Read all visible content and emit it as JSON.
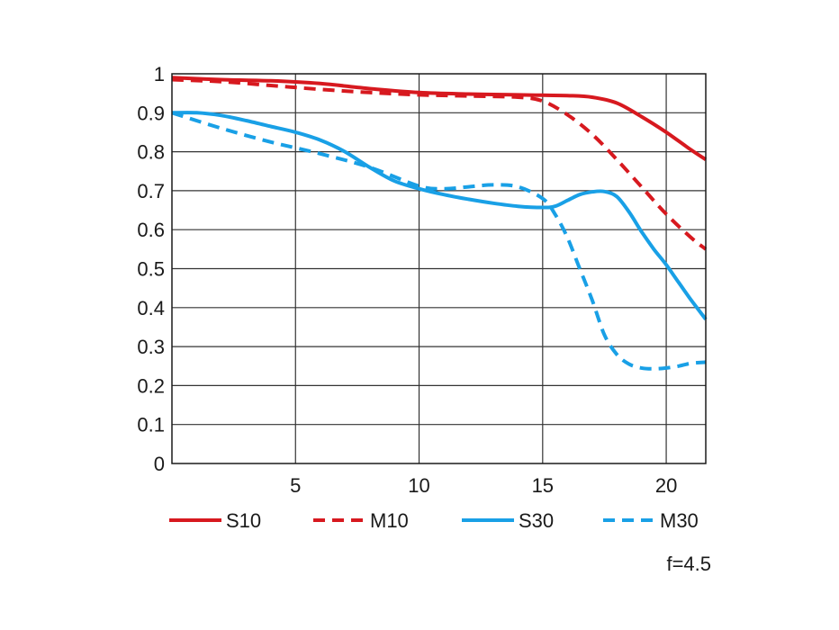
{
  "chart_data": {
    "type": "line",
    "title": "",
    "xlabel": "",
    "ylabel": "",
    "xlim": [
      0,
      21.6
    ],
    "ylim": [
      0,
      1
    ],
    "grid": true,
    "legend_position": "bottom",
    "x_ticks": [
      {
        "value": 5,
        "label": "5"
      },
      {
        "value": 10,
        "label": "10"
      },
      {
        "value": 15,
        "label": "15"
      },
      {
        "value": 20,
        "label": "20"
      }
    ],
    "y_ticks": [
      {
        "value": 0,
        "label": "0"
      },
      {
        "value": 0.1,
        "label": "0.1"
      },
      {
        "value": 0.2,
        "label": "0.2"
      },
      {
        "value": 0.3,
        "label": "0.3"
      },
      {
        "value": 0.4,
        "label": "0.4"
      },
      {
        "value": 0.5,
        "label": "0.5"
      },
      {
        "value": 0.6,
        "label": "0.6"
      },
      {
        "value": 0.7,
        "label": "0.7"
      },
      {
        "value": 0.8,
        "label": "0.8"
      },
      {
        "value": 0.9,
        "label": "0.9"
      },
      {
        "value": 1,
        "label": "1"
      }
    ],
    "annotation": "f=4.5",
    "series": [
      {
        "name": "S10",
        "color": "#d7191f",
        "style": "solid",
        "points": [
          [
            0,
            0.99
          ],
          [
            2,
            0.985
          ],
          [
            4,
            0.982
          ],
          [
            6,
            0.975
          ],
          [
            8,
            0.962
          ],
          [
            10,
            0.952
          ],
          [
            12,
            0.948
          ],
          [
            14,
            0.946
          ],
          [
            15,
            0.945
          ],
          [
            16,
            0.944
          ],
          [
            17,
            0.94
          ],
          [
            18,
            0.925
          ],
          [
            19,
            0.89
          ],
          [
            20,
            0.85
          ],
          [
            21,
            0.805
          ],
          [
            21.6,
            0.78
          ]
        ]
      },
      {
        "name": "M10",
        "color": "#d7191f",
        "style": "dashed",
        "points": [
          [
            0,
            0.985
          ],
          [
            2,
            0.98
          ],
          [
            4,
            0.97
          ],
          [
            6,
            0.96
          ],
          [
            8,
            0.952
          ],
          [
            10,
            0.946
          ],
          [
            12,
            0.943
          ],
          [
            14,
            0.94
          ],
          [
            15,
            0.93
          ],
          [
            16,
            0.895
          ],
          [
            17,
            0.845
          ],
          [
            18,
            0.78
          ],
          [
            19,
            0.71
          ],
          [
            20,
            0.64
          ],
          [
            21,
            0.58
          ],
          [
            21.6,
            0.55
          ]
        ]
      },
      {
        "name": "S30",
        "color": "#19a0e6",
        "style": "solid",
        "points": [
          [
            0,
            0.9
          ],
          [
            1,
            0.9
          ],
          [
            2,
            0.893
          ],
          [
            3,
            0.88
          ],
          [
            4,
            0.865
          ],
          [
            5,
            0.85
          ],
          [
            6,
            0.83
          ],
          [
            7,
            0.8
          ],
          [
            8,
            0.76
          ],
          [
            9,
            0.725
          ],
          [
            10,
            0.705
          ],
          [
            11,
            0.69
          ],
          [
            12,
            0.678
          ],
          [
            13,
            0.668
          ],
          [
            14,
            0.66
          ],
          [
            15,
            0.657
          ],
          [
            15.5,
            0.66
          ],
          [
            16,
            0.675
          ],
          [
            16.5,
            0.69
          ],
          [
            17,
            0.697
          ],
          [
            17.5,
            0.698
          ],
          [
            18,
            0.685
          ],
          [
            18.5,
            0.645
          ],
          [
            19,
            0.595
          ],
          [
            19.5,
            0.55
          ],
          [
            20,
            0.51
          ],
          [
            20.5,
            0.465
          ],
          [
            21,
            0.42
          ],
          [
            21.6,
            0.37
          ]
        ]
      },
      {
        "name": "M30",
        "color": "#19a0e6",
        "style": "dashed",
        "points": [
          [
            0,
            0.9
          ],
          [
            2,
            0.86
          ],
          [
            4,
            0.825
          ],
          [
            6,
            0.795
          ],
          [
            8,
            0.76
          ],
          [
            10,
            0.712
          ],
          [
            11,
            0.705
          ],
          [
            12,
            0.71
          ],
          [
            13,
            0.715
          ],
          [
            14,
            0.71
          ],
          [
            15,
            0.68
          ],
          [
            15.5,
            0.64
          ],
          [
            16,
            0.58
          ],
          [
            16.5,
            0.5
          ],
          [
            17,
            0.42
          ],
          [
            17.5,
            0.33
          ],
          [
            18,
            0.28
          ],
          [
            18.5,
            0.255
          ],
          [
            19,
            0.245
          ],
          [
            19.5,
            0.243
          ],
          [
            20,
            0.245
          ],
          [
            20.5,
            0.25
          ],
          [
            21,
            0.257
          ],
          [
            21.6,
            0.26
          ]
        ]
      }
    ]
  }
}
